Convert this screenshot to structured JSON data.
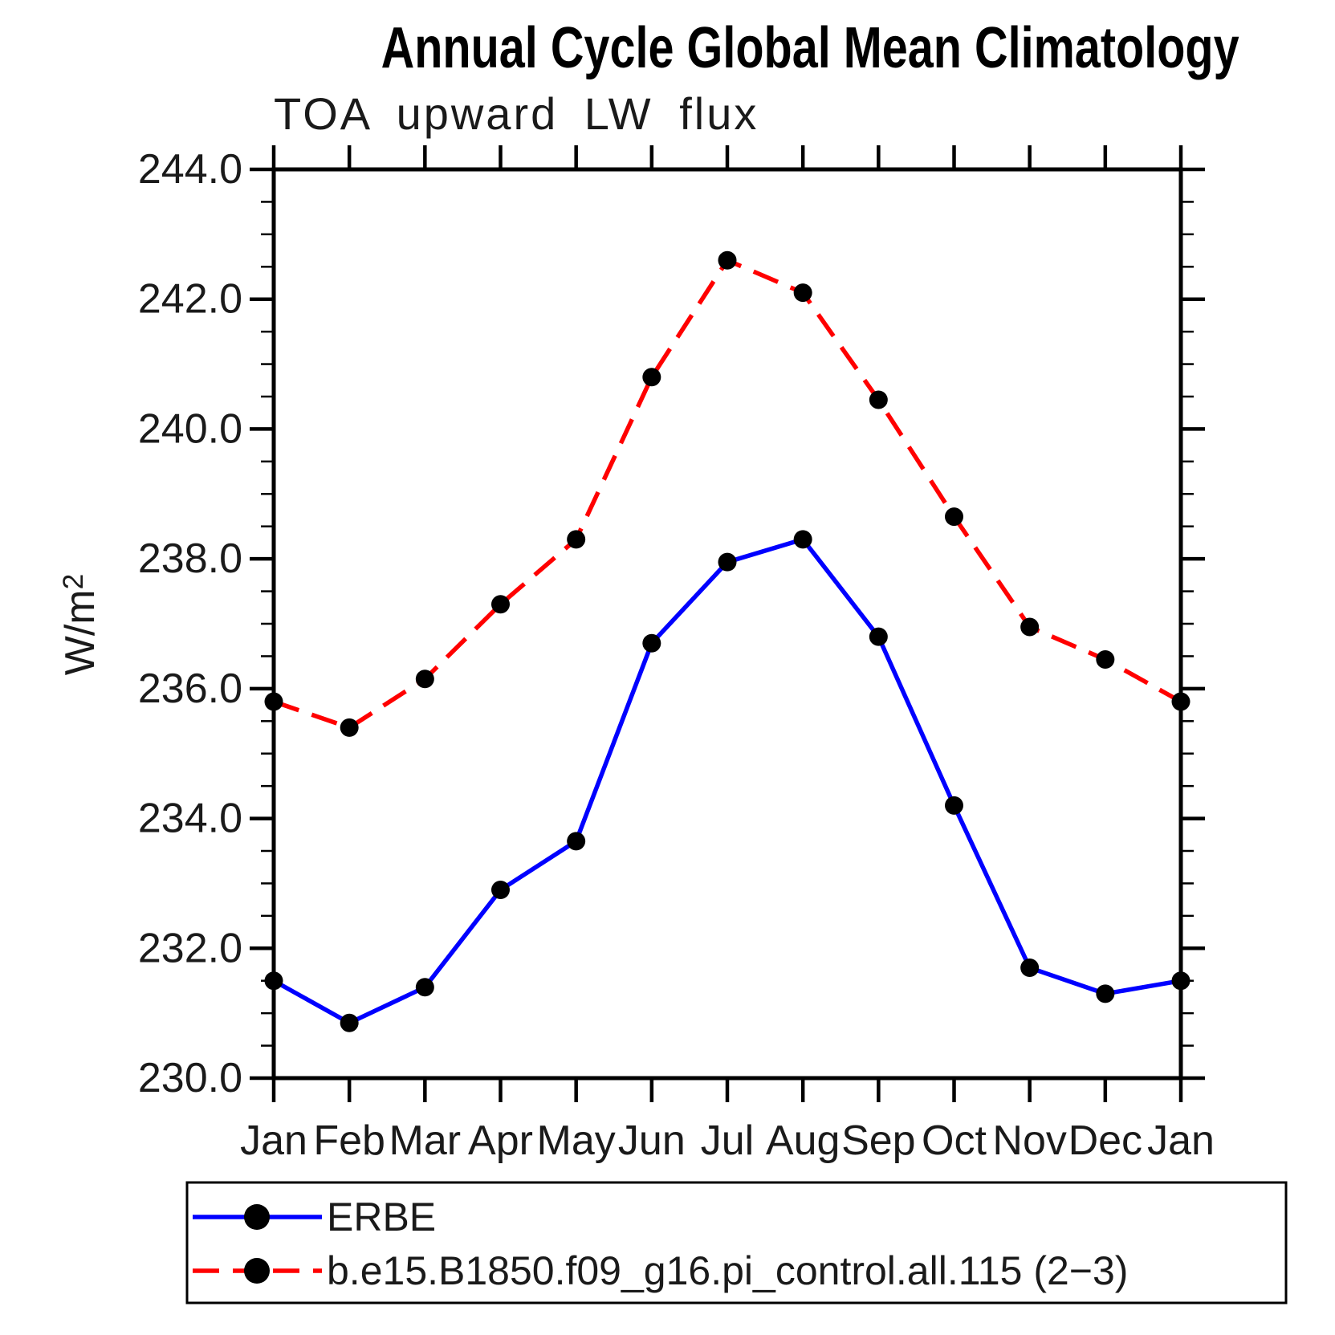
{
  "chart_data": {
    "type": "line",
    "title": "Annual Cycle Global Mean Climatology",
    "subtitle": "TOA upward LW flux",
    "ylabel": "W/m²",
    "ylabel_base": "W/m",
    "ylabel_exponent": "2",
    "categories": [
      "Jan",
      "Feb",
      "Mar",
      "Apr",
      "May",
      "Jun",
      "Jul",
      "Aug",
      "Sep",
      "Oct",
      "Nov",
      "Dec",
      "Jan"
    ],
    "y_tick_labels": [
      "244.0",
      "242.0",
      "240.0",
      "238.0",
      "236.0",
      "234.0",
      "232.0",
      "230.0"
    ],
    "y_axis": {
      "min": 230.0,
      "max": 244.0,
      "major_step": 2.0,
      "minor_step": 0.5
    },
    "grid": false,
    "legend_position": "bottom",
    "axis_color": "#000000",
    "marker_color": "#000000",
    "series": [
      {
        "name": "ERBE",
        "line_color": "#0000ff",
        "line_style": "solid",
        "marker": "filled-circle",
        "values": [
          231.5,
          230.85,
          231.4,
          232.9,
          233.65,
          236.7,
          237.95,
          238.3,
          236.8,
          234.2,
          231.7,
          231.3,
          231.5
        ]
      },
      {
        "name": "b.e15.B1850.f09_g16.pi_control.all.115 (2−3)",
        "line_color": "#ff0000",
        "line_style": "dashed",
        "marker": "filled-circle",
        "values": [
          235.8,
          235.4,
          236.15,
          237.3,
          238.3,
          240.8,
          242.6,
          242.1,
          240.45,
          238.65,
          236.95,
          236.45,
          235.8
        ]
      }
    ]
  }
}
